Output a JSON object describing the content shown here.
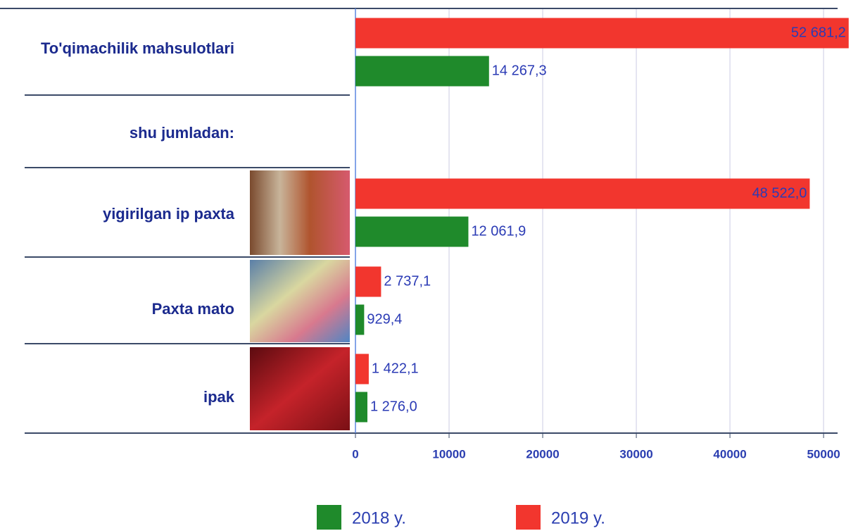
{
  "chart_data": {
    "type": "hbar",
    "categories": [
      "To'qimachilik mahsulotlari",
      "shu jumladan:",
      "yigirilgan ip paxta",
      "Paxta mato",
      "ipak"
    ],
    "series": [
      {
        "name": "2018 y.",
        "color": "#1f8a2b",
        "values": [
          14267.3,
          null,
          12061.9,
          929.4,
          1276.0
        ],
        "value_labels": [
          "14 267,3",
          null,
          "12 061,9",
          "929,4",
          "1 276,0"
        ]
      },
      {
        "name": "2019 y.",
        "color": "#f2362e",
        "values": [
          52681.2,
          null,
          48522.0,
          2737.1,
          1422.1
        ],
        "value_labels": [
          "52 681,2",
          null,
          "48 522,0",
          "2 737,1",
          "1 422,1"
        ]
      }
    ],
    "xlim": [
      0,
      53000
    ],
    "xticks": [
      0,
      10000,
      20000,
      30000,
      40000,
      50000
    ],
    "grid": true
  }
}
